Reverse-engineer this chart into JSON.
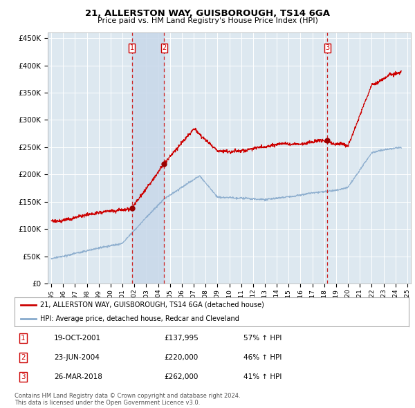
{
  "title": "21, ALLERSTON WAY, GUISBOROUGH, TS14 6GA",
  "subtitle": "Price paid vs. HM Land Registry's House Price Index (HPI)",
  "ytick_values": [
    0,
    50000,
    100000,
    150000,
    200000,
    250000,
    300000,
    350000,
    400000,
    450000
  ],
  "ylim": [
    0,
    460000
  ],
  "xlim_start": 1994.7,
  "xlim_end": 2025.3,
  "background_color": "#ffffff",
  "plot_bg_color": "#dde8f0",
  "grid_color": "#ffffff",
  "red_line_color": "#cc0000",
  "blue_line_color": "#88aacc",
  "legend_label_red": "21, ALLERSTON WAY, GUISBOROUGH, TS14 6GA (detached house)",
  "legend_label_blue": "HPI: Average price, detached house, Redcar and Cleveland",
  "transactions": [
    {
      "num": 1,
      "date": "19-OCT-2001",
      "price": 137995,
      "change": "57% ↑ HPI",
      "year": 2001.8
    },
    {
      "num": 2,
      "date": "23-JUN-2004",
      "price": 220000,
      "change": "46% ↑ HPI",
      "year": 2004.5
    },
    {
      "num": 3,
      "date": "26-MAR-2018",
      "price": 262000,
      "change": "41% ↑ HPI",
      "year": 2018.25
    }
  ],
  "footnote1": "Contains HM Land Registry data © Crown copyright and database right 2024.",
  "footnote2": "This data is licensed under the Open Government Licence v3.0.",
  "shade_between_1_2": true
}
